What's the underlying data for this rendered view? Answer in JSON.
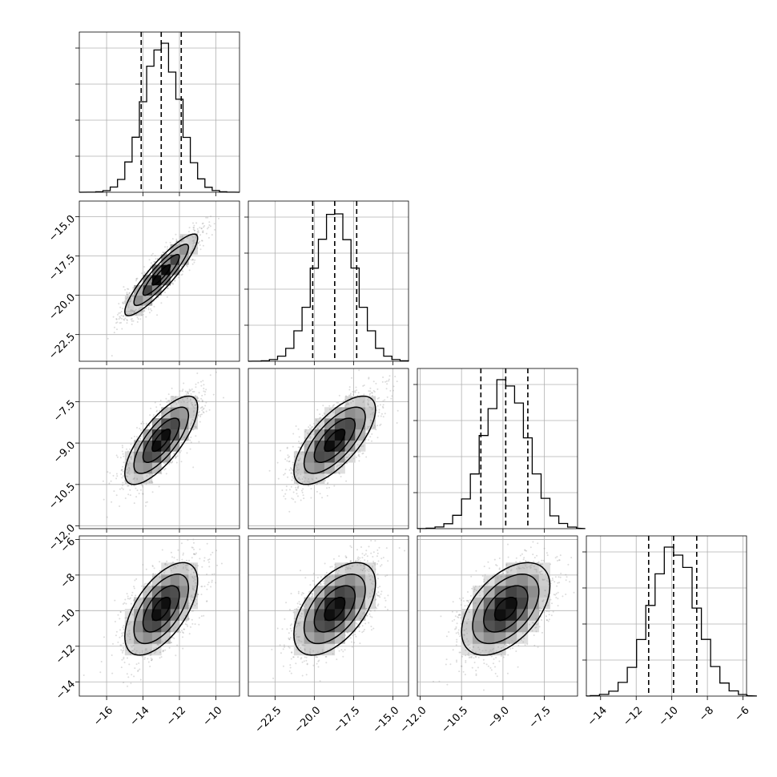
{
  "chart_data": {
    "type": "corner",
    "grid": true,
    "params": [
      {
        "index": 0,
        "range": [
          -17.5,
          -8.7
        ],
        "mean": -13.0,
        "sd": 1.0,
        "q16": -14.1,
        "q50": -13.0,
        "q84": -11.9,
        "ticks": [
          -16,
          -14,
          -12,
          -10
        ],
        "tick_labels": [
          "−16",
          "−14",
          "−12",
          "−10"
        ]
      },
      {
        "index": 1,
        "range": [
          -24.2,
          -14.0
        ],
        "mean": -18.7,
        "sd": 1.3,
        "q16": -20.1,
        "q50": -18.7,
        "q84": -17.3,
        "ticks": [
          -22.5,
          -20.0,
          -17.5,
          -15.0
        ],
        "tick_labels": [
          "−22.5",
          "−20.0",
          "−17.5",
          "−15.0"
        ]
      },
      {
        "index": 2,
        "range": [
          -12.1,
          -6.3
        ],
        "mean": -8.9,
        "sd": 0.8,
        "q16": -9.8,
        "q50": -8.9,
        "q84": -8.1,
        "ticks": [
          -12.0,
          -10.5,
          -9.0,
          -7.5
        ],
        "tick_labels": [
          "−12.0",
          "−10.5",
          "−9.0",
          "−7.5"
        ]
      },
      {
        "index": 3,
        "range": [
          -14.8,
          -5.8
        ],
        "mean": -9.9,
        "sd": 1.3,
        "q16": -11.3,
        "q50": -9.9,
        "q84": -8.6,
        "ticks": [
          -14,
          -12,
          -10,
          -8,
          -6
        ],
        "tick_labels": [
          "−14",
          "−12",
          "−10",
          "−8",
          "−6"
        ]
      }
    ],
    "correlations": [
      [
        0,
        1,
        0.9
      ],
      [
        0,
        2,
        0.75
      ],
      [
        0,
        3,
        0.6
      ],
      [
        1,
        2,
        0.7
      ],
      [
        1,
        3,
        0.55
      ],
      [
        2,
        3,
        0.5
      ]
    ],
    "hist_peak": 0.2,
    "contour_levels": [
      0.5,
      1.0,
      1.5,
      2.0
    ]
  }
}
